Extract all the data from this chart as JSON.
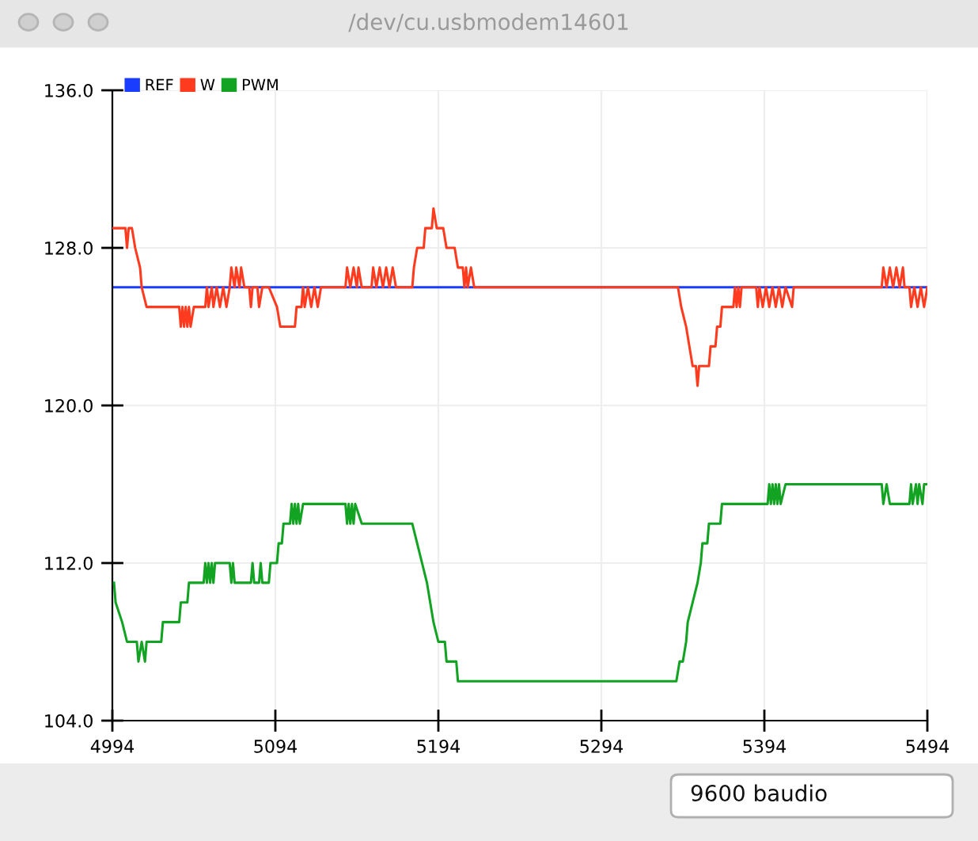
{
  "chart_data": {
    "type": "line",
    "title": "/dev/cu.usbmodem14601",
    "annotations": [
      "9600 baudio"
    ],
    "series": [
      {
        "name": "REF",
        "color": "#1a3cff",
        "x": [
          4994,
          5494
        ],
        "values": [
          126,
          126
        ]
      },
      {
        "name": "W",
        "color": "#ff3b1f",
        "x": [
          4994,
          5002,
          5003,
          5004,
          5006,
          5008,
          5011,
          5012,
          5015,
          5020,
          5030,
          5035,
          5036,
          5037,
          5038,
          5039,
          5040,
          5041,
          5042,
          5044,
          5051,
          5052,
          5053,
          5055,
          5056,
          5058,
          5060,
          5062,
          5064,
          5066,
          5067,
          5069,
          5070,
          5072,
          5073,
          5075,
          5078,
          5079,
          5080,
          5083,
          5084,
          5086,
          5090,
          5095,
          5097,
          5106,
          5107,
          5110,
          5111,
          5112,
          5114,
          5116,
          5118,
          5120,
          5122,
          5137,
          5138,
          5140,
          5142,
          5144,
          5145,
          5147,
          5153,
          5154,
          5156,
          5158,
          5160,
          5162,
          5164,
          5166,
          5168,
          5178,
          5179,
          5181,
          5185,
          5186,
          5190,
          5191,
          5193,
          5197,
          5199,
          5204,
          5206,
          5209,
          5210,
          5211,
          5212,
          5214,
          5216,
          5341,
          5343,
          5346,
          5348,
          5350,
          5352,
          5353,
          5354,
          5360,
          5361,
          5364,
          5365,
          5367,
          5368,
          5375,
          5376,
          5377,
          5378,
          5379,
          5380,
          5389,
          5390,
          5391,
          5393,
          5395,
          5397,
          5399,
          5401,
          5403,
          5405,
          5407,
          5411,
          5412,
          5466,
          5467,
          5469,
          5471,
          5473,
          5475,
          5477,
          5479,
          5480,
          5483,
          5484,
          5486,
          5488,
          5490,
          5492,
          5494
        ],
        "values": [
          129,
          129,
          128,
          129,
          129,
          128,
          127,
          126,
          125,
          125,
          125,
          125,
          124,
          125,
          124,
          125,
          124,
          125,
          124,
          125,
          125,
          126,
          125,
          126,
          125,
          126,
          125,
          126,
          125,
          126,
          127,
          126,
          127,
          126,
          127,
          126,
          126,
          125,
          126,
          126,
          125,
          126,
          126,
          125,
          124,
          124,
          125,
          125,
          126,
          125,
          126,
          125,
          126,
          125,
          126,
          126,
          127,
          126,
          127,
          126,
          127,
          126,
          126,
          127,
          126,
          127,
          126,
          127,
          126,
          127,
          126,
          126,
          127,
          128,
          128,
          129,
          129,
          130,
          129,
          129,
          128,
          128,
          127,
          127,
          126,
          127,
          126,
          127,
          126,
          126,
          125,
          124,
          123,
          122,
          122,
          121,
          122,
          122,
          123,
          123,
          124,
          124,
          125,
          125,
          126,
          125,
          126,
          125,
          126,
          126,
          125,
          126,
          125,
          126,
          125,
          126,
          125,
          126,
          125,
          126,
          125,
          126,
          126,
          127,
          126,
          127,
          126,
          127,
          126,
          127,
          126,
          126,
          125,
          126,
          125,
          126,
          125,
          126
        ]
      },
      {
        "name": "PWM",
        "color": "#13a323",
        "x": [
          4995,
          4996,
          5000,
          5003,
          5009,
          5010,
          5012,
          5014,
          5015,
          5024,
          5025,
          5035,
          5036,
          5040,
          5041,
          5050,
          5051,
          5052,
          5053,
          5054,
          5055,
          5056,
          5057,
          5066,
          5067,
          5068,
          5069,
          5079,
          5080,
          5081,
          5084,
          5085,
          5086,
          5090,
          5091,
          5095,
          5096,
          5098,
          5099,
          5103,
          5104,
          5105,
          5106,
          5107,
          5108,
          5109,
          5111,
          5137,
          5138,
          5139,
          5140,
          5141,
          5142,
          5143,
          5147,
          5178,
          5181,
          5184,
          5187,
          5189,
          5191,
          5194,
          5198,
          5199,
          5205,
          5206,
          5340,
          5342,
          5344,
          5346,
          5347,
          5350,
          5353,
          5355,
          5356,
          5359,
          5360,
          5367,
          5368,
          5396,
          5397,
          5398,
          5399,
          5400,
          5401,
          5402,
          5403,
          5404,
          5407,
          5466,
          5467,
          5469,
          5471,
          5483,
          5484,
          5485,
          5487,
          5488,
          5489,
          5491,
          5492,
          5494
        ],
        "values": [
          111,
          110,
          109,
          108,
          108,
          107,
          108,
          107,
          108,
          108,
          109,
          109,
          110,
          110,
          111,
          111,
          112,
          111,
          112,
          111,
          112,
          111,
          112,
          112,
          111,
          112,
          111,
          111,
          112,
          111,
          111,
          112,
          111,
          111,
          112,
          112,
          113,
          113,
          114,
          114,
          115,
          114,
          115,
          114,
          115,
          114,
          115,
          115,
          114,
          115,
          114,
          115,
          114,
          115,
          114,
          114,
          113,
          112,
          111,
          110,
          109,
          108,
          108,
          107,
          107,
          106,
          106,
          107,
          107,
          108,
          109,
          110,
          111,
          112,
          113,
          113,
          114,
          114,
          115,
          115,
          116,
          115,
          116,
          115,
          116,
          115,
          116,
          115,
          116,
          116,
          115,
          116,
          115,
          115,
          116,
          115,
          116,
          115,
          116,
          115,
          116,
          116
        ]
      }
    ],
    "xlim": [
      4994,
      5494
    ],
    "xticks": [
      4994,
      5094,
      5194,
      5294,
      5394,
      5494
    ],
    "ylim": [
      104,
      136
    ],
    "yticks": [
      {
        "value": 104,
        "label": "104.0"
      },
      {
        "value": 112,
        "label": "112.0"
      },
      {
        "value": 120,
        "label": "120.0"
      },
      {
        "value": 128,
        "label": "128.0"
      },
      {
        "value": 136,
        "label": "136.0"
      }
    ],
    "grid": true,
    "legend": "top left",
    "marker": "none",
    "line_style": "solid"
  }
}
